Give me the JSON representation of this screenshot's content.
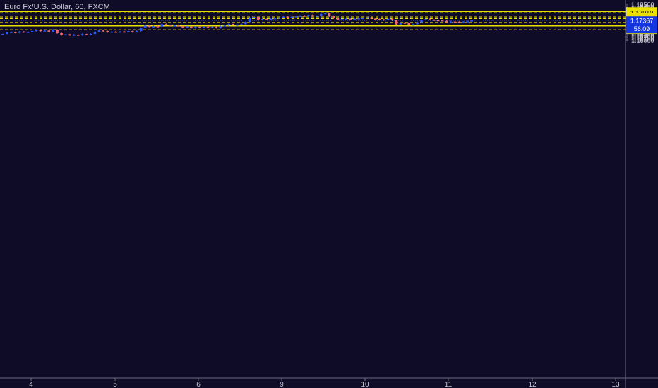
{
  "chart_data": {
    "type": "candlestick",
    "title": "Euro Fx/U.S. Dollar, 60, FXCM",
    "colors": {
      "background": "#0e0c26",
      "up": "#2f56f0",
      "down": "#ec6c70",
      "level": "#e8e000",
      "price_tag": "#1436e0",
      "axis_text": "#c8c8d0"
    },
    "y_axis": {
      "range": [
        1.1595,
        1.1855
      ],
      "ticks": [
        "1.18500",
        "1.18400",
        "1.18300",
        "1.18200",
        "1.18100",
        "1.18000",
        "1.17900",
        "1.17800",
        "1.17700",
        "1.17600",
        "1.17500",
        "1.17400",
        "1.17300",
        "1.17200",
        "1.17100",
        "1.17000",
        "1.16900",
        "1.16800",
        "1.16700",
        "1.16600",
        "1.16500",
        "1.16400",
        "1.16300",
        "1.16200",
        "1.16100",
        "1.16000"
      ]
    },
    "x_axis": {
      "ticks": [
        "4",
        "5",
        "6",
        "9",
        "10",
        "11",
        "12",
        "13"
      ]
    },
    "levels": [
      {
        "price": 1.18,
        "label": "1.18000",
        "style": "solid"
      },
      {
        "price": 1.1791,
        "label": "1.17910",
        "style": "dashed"
      },
      {
        "price": 1.1762,
        "label": "1.17620",
        "style": "dashed"
      },
      {
        "price": 1.175,
        "label": "1.17500",
        "style": "dashed"
      },
      {
        "price": 1.1724,
        "label": "1.17240",
        "style": "dashed"
      },
      {
        "price": 1.17,
        "label": "1.17000",
        "style": "solid"
      },
      {
        "price": 1.1674,
        "label": "1.16740",
        "style": "dashed"
      }
    ],
    "current_price": {
      "price": 1.17367,
      "label": "1.17367",
      "countdown": "56:09"
    },
    "closes": [
      1.1645,
      1.1655,
      1.1658,
      1.1653,
      1.1661,
      1.1656,
      1.1659,
      1.1665,
      1.1671,
      1.1666,
      1.1668,
      1.166,
      1.1674,
      1.165,
      1.1638,
      1.1642,
      1.1635,
      1.164,
      1.1637,
      1.1644,
      1.1639,
      1.1645,
      1.166,
      1.1669,
      1.1665,
      1.1655,
      1.166,
      1.1657,
      1.1661,
      1.1659,
      1.1664,
      1.1656,
      1.1665,
      1.1689,
      1.1702,
      1.1693,
      1.1698,
      1.1695,
      1.1712,
      1.1707,
      1.17,
      1.1703,
      1.1698,
      1.169,
      1.1695,
      1.1684,
      1.1693,
      1.1691,
      1.1694,
      1.1692,
      1.1693,
      1.1685,
      1.1696,
      1.1703,
      1.1713,
      1.1706,
      1.1708,
      1.1712,
      1.1728,
      1.1755,
      1.1762,
      1.174,
      1.1747,
      1.1744,
      1.1749,
      1.1753,
      1.1757,
      1.1765,
      1.176,
      1.1763,
      1.1766,
      1.1771,
      1.1767,
      1.1775,
      1.1768,
      1.1771,
      1.1783,
      1.1788,
      1.1768,
      1.1754,
      1.1742,
      1.1746,
      1.1748,
      1.1747,
      1.1749,
      1.1752,
      1.1754,
      1.1759,
      1.175,
      1.1748,
      1.1745,
      1.1738,
      1.1749,
      1.1738,
      1.171,
      1.1722,
      1.1721,
      1.1705,
      1.1712,
      1.1725,
      1.174,
      1.1746,
      1.1742,
      1.1739,
      1.1738,
      1.1734,
      1.1727,
      1.173,
      1.1729,
      1.1728,
      1.173,
      1.1732,
      1.1737
    ]
  }
}
